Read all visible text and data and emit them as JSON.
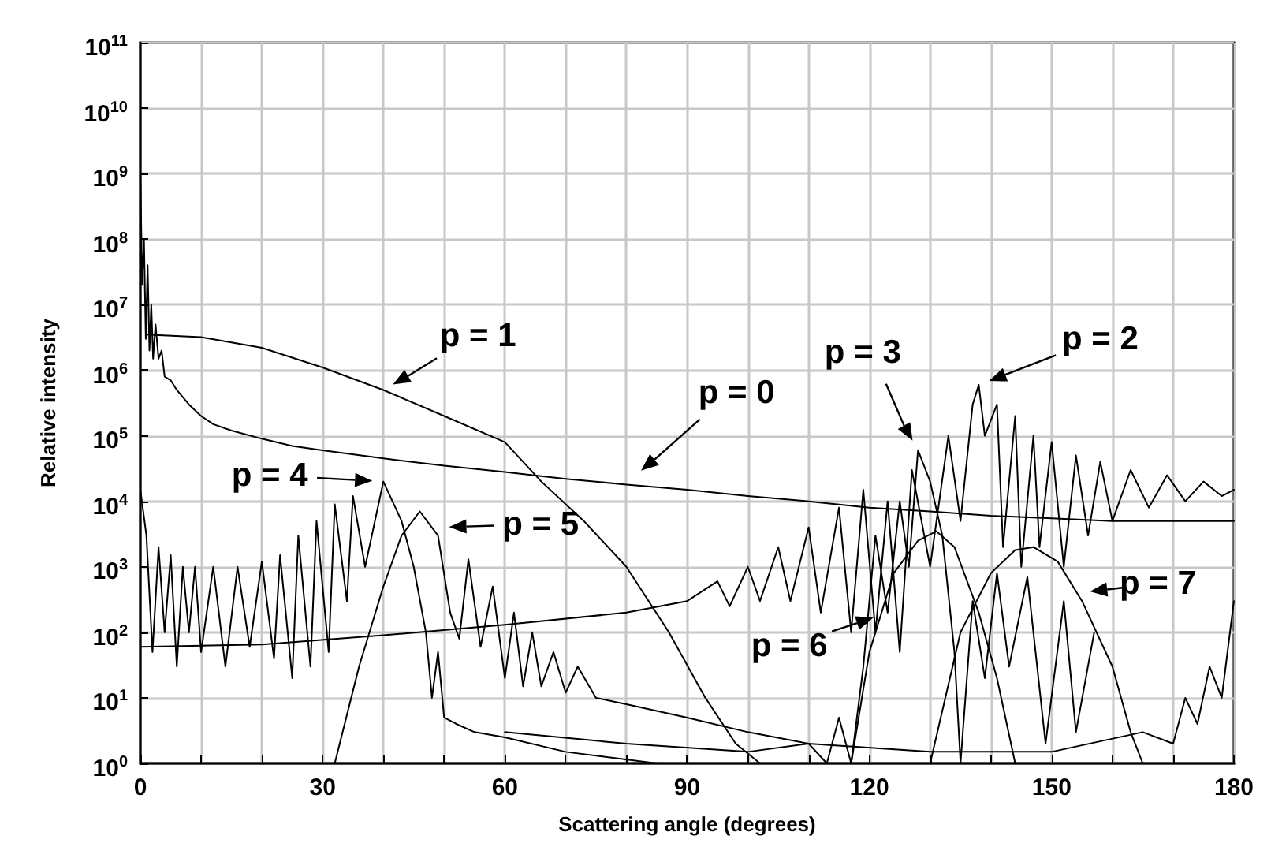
{
  "chart_data": {
    "type": "line",
    "xlabel": "Scattering angle (degrees)",
    "ylabel": "Relative intensity",
    "log": "y",
    "grid": true,
    "marker": "none",
    "line_style": "solid",
    "xlim": [
      0,
      180
    ],
    "xticks": [
      0,
      {
        "value": 10,
        "label": null
      },
      {
        "value": 20,
        "label": null
      },
      30,
      {
        "value": 40,
        "label": null
      },
      {
        "value": 50,
        "label": null
      },
      60,
      {
        "value": 70,
        "label": null
      },
      {
        "value": 80,
        "label": null
      },
      90,
      {
        "value": 100,
        "label": null
      },
      {
        "value": 110,
        "label": null
      },
      120,
      {
        "value": 130,
        "label": null
      },
      {
        "value": 140,
        "label": null
      },
      150,
      {
        "value": 160,
        "label": null
      },
      {
        "value": 170,
        "label": null
      },
      180
    ],
    "ylim": [
      1,
      100000000000
    ],
    "yticks": [
      {
        "value": 1,
        "label": "10$^{0}$"
      },
      {
        "value": 10,
        "label": "10$^{1}$"
      },
      {
        "value": 100,
        "label": "10$^{2}$"
      },
      {
        "value": 1000,
        "label": "10$^{3}$"
      },
      {
        "value": 10000,
        "label": "10$^{4}$"
      },
      {
        "value": 100000,
        "label": "10$^{5}$"
      },
      {
        "value": 1000000,
        "label": "10$^{6}$"
      },
      {
        "value": 10000000,
        "label": "10$^{7}$"
      },
      {
        "value": 100000000,
        "label": "10$^{8}$"
      },
      {
        "value": 1000000000,
        "label": "10$^{9}$"
      },
      {
        "value": 10000000000,
        "label": "10$^{10}$"
      },
      {
        "value": 100000000000,
        "label": "10$^{11}$"
      }
    ],
    "series": [
      {
        "color": "#000000",
        "x": [
          0,
          0.3,
          0.6,
          0.9,
          1.2,
          1.5,
          1.8,
          2.1,
          2.5,
          3,
          3.5,
          4,
          5,
          6,
          8,
          10,
          12,
          15,
          20,
          25,
          30,
          40,
          50,
          60,
          70,
          80,
          90,
          100,
          110,
          120,
          130,
          140,
          150,
          160,
          170,
          180
        ],
        "values": [
          1000000000,
          20000000,
          100000000,
          3000000,
          40000000,
          2000000,
          10000000,
          1500000,
          5000000,
          1500000,
          2000000,
          800000,
          700000,
          500000,
          300000,
          200000,
          150000,
          120000,
          90000,
          70000,
          60000,
          45000,
          35000,
          28000,
          22000,
          18000,
          15000,
          12000,
          10000,
          8000,
          7000,
          6000,
          5500,
          5000,
          5000,
          5000
        ]
      },
      {
        "color": "#000000",
        "x": [
          1,
          10,
          20,
          30,
          40,
          50,
          60,
          66,
          73,
          80,
          87,
          93,
          98,
          102
        ],
        "values": [
          3500000,
          3200000,
          2200000,
          1100000,
          500000,
          200000,
          80000,
          20000,
          5000,
          1000,
          100,
          10,
          2,
          1
        ]
      },
      {
        "color": "#000000",
        "x": [
          0,
          20,
          40,
          60,
          80,
          90,
          95,
          97,
          100,
          102,
          105,
          107,
          110,
          112,
          115,
          117,
          119,
          121,
          123,
          125,
          127,
          130,
          133,
          135,
          137,
          138,
          139,
          141,
          142,
          144,
          145,
          147,
          148,
          150,
          152,
          154,
          156,
          158,
          160,
          163,
          166,
          169,
          172,
          175,
          178,
          180
        ],
        "values": [
          60,
          65,
          90,
          130,
          200,
          300,
          600,
          250,
          1000,
          300,
          2000,
          300,
          4000,
          200,
          8000,
          100,
          15000,
          100,
          10000,
          50,
          30000,
          1000,
          100000,
          5000,
          300000,
          600000,
          100000,
          300000,
          2000,
          200000,
          1000,
          100000,
          2000,
          80000,
          1000,
          50000,
          3000,
          40000,
          5000,
          30000,
          8000,
          25000,
          10000,
          20000,
          12000,
          15000
        ]
      },
      {
        "color": "#000000",
        "x": [
          60,
          80,
          100,
          110,
          113,
          115,
          117,
          119,
          121,
          123,
          125,
          126.5,
          128,
          130,
          132,
          134,
          135,
          137,
          139,
          141,
          143,
          146,
          149,
          152,
          154,
          157
        ],
        "values": [
          3,
          2,
          1.5,
          2,
          1,
          5,
          1,
          30,
          3000,
          200,
          10000,
          1000,
          60000,
          20000,
          3000,
          50,
          1,
          300,
          20,
          800,
          30,
          700,
          2,
          300,
          3,
          100
        ]
      },
      {
        "color": "#000000",
        "x": [
          0,
          1,
          2,
          3,
          4,
          5,
          6,
          7,
          8,
          9,
          10,
          12,
          14,
          16,
          18,
          20,
          22,
          23,
          25,
          26,
          28,
          29,
          31,
          32,
          34,
          35,
          37,
          40,
          43,
          45,
          47,
          48,
          49,
          50,
          52,
          55,
          60,
          70,
          85
        ],
        "values": [
          15000,
          3000,
          50,
          2000,
          100,
          1500,
          30,
          1000,
          100,
          1000,
          50,
          1000,
          30,
          1000,
          60,
          1200,
          40,
          1500,
          20,
          3000,
          30,
          5000,
          50,
          9000,
          300,
          12000,
          1000,
          20000,
          5000,
          1000,
          100,
          10,
          50,
          5,
          4,
          3,
          2.5,
          1.5,
          1
        ]
      },
      {
        "color": "#000000",
        "x": [
          32,
          36,
          40,
          43,
          46,
          49,
          51,
          52.5,
          54,
          56,
          58,
          60,
          61.5,
          63,
          64.5,
          66,
          68,
          70,
          72,
          75,
          80,
          90,
          100,
          110,
          130,
          150,
          165,
          170,
          172,
          174,
          176,
          178,
          180
        ],
        "values": [
          1,
          30,
          500,
          3000,
          7000,
          3000,
          200,
          80,
          1300,
          60,
          500,
          20,
          200,
          15,
          100,
          15,
          50,
          12,
          30,
          10,
          8,
          5,
          3,
          2,
          1.5,
          1.5,
          3,
          2,
          10,
          4,
          30,
          10,
          300
        ]
      },
      {
        "color": "#000000",
        "x": [
          117,
          120,
          124,
          128,
          131,
          134,
          138,
          141,
          144
        ],
        "values": [
          1,
          50,
          800,
          2500,
          3500,
          2000,
          200,
          20,
          1
        ]
      },
      {
        "color": "#000000",
        "x": [
          130,
          135,
          140,
          144,
          147,
          151,
          155,
          160,
          163,
          165
        ],
        "values": [
          1,
          100,
          800,
          1800,
          2000,
          1200,
          300,
          30,
          3,
          1
        ]
      }
    ],
    "annotations": [
      {
        "text": "p = 1",
        "x": 40,
        "y": 500000
      },
      {
        "text": "p = 0",
        "x": 81,
        "y": 23000
      },
      {
        "text": "p = 3",
        "x": 128,
        "y": 60000
      },
      {
        "text": "p = 2",
        "x": 138,
        "y": 600000
      },
      {
        "text": "p = 4",
        "x": 40,
        "y": 20000
      },
      {
        "text": "p = 5",
        "x": 49,
        "y": 4000
      },
      {
        "text": "p = 6",
        "x": 122.4,
        "y": 190
      },
      {
        "text": "p = 7",
        "x": 154.5,
        "y": 400
      }
    ]
  }
}
